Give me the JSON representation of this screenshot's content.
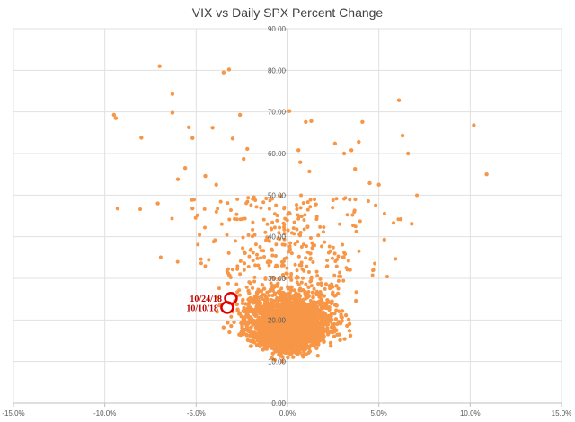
{
  "chart_data": {
    "type": "scatter",
    "title": "VIX vs Daily SPX Percent Change",
    "xlabel": "",
    "ylabel": "",
    "xlim": [
      -15,
      15
    ],
    "ylim": [
      0,
      90
    ],
    "grid": true,
    "legend": "none",
    "series_color": "#f79646",
    "x_tick_labels": [
      "-15.0%",
      "-10.0%",
      "-5.0%",
      "0.0%",
      "5.0%",
      "10.0%",
      "15.0%"
    ],
    "x_tick_values": [
      -15,
      -10,
      -5,
      0,
      5,
      10,
      15
    ],
    "y_tick_labels": [
      "0.00",
      "10.00",
      "20.00",
      "30.00",
      "40.00",
      "50.00",
      "60.00",
      "70.00",
      "80.00",
      "90.00"
    ],
    "y_tick_values": [
      0,
      10,
      20,
      30,
      40,
      50,
      60,
      70,
      80,
      90
    ],
    "annotations": [
      {
        "label": "10/24/18",
        "x": -3.1,
        "y": 25.2,
        "color": "#e00000"
      },
      {
        "label": "10/10/18",
        "x": -3.3,
        "y": 23.0,
        "color": "#e00000"
      }
    ],
    "outliers": [
      {
        "x": -7.0,
        "y": 81.0
      },
      {
        "x": -3.5,
        "y": 79.5
      },
      {
        "x": -3.2,
        "y": 80.2
      },
      {
        "x": -6.3,
        "y": 74.3
      },
      {
        "x": 6.1,
        "y": 72.8
      },
      {
        "x": -9.5,
        "y": 69.3
      },
      {
        "x": -9.4,
        "y": 68.5
      },
      {
        "x": -6.3,
        "y": 69.8
      },
      {
        "x": -2.6,
        "y": 69.3
      },
      {
        "x": 0.1,
        "y": 70.2
      },
      {
        "x": 10.2,
        "y": 66.8
      },
      {
        "x": 1.0,
        "y": 67.6
      },
      {
        "x": 1.3,
        "y": 67.8
      },
      {
        "x": 4.1,
        "y": 67.6
      },
      {
        "x": -5.4,
        "y": 66.3
      },
      {
        "x": -4.1,
        "y": 66.2
      },
      {
        "x": -5.2,
        "y": 63.7
      },
      {
        "x": -3.0,
        "y": 63.6
      },
      {
        "x": -8.0,
        "y": 63.8
      },
      {
        "x": 6.3,
        "y": 64.3
      },
      {
        "x": 2.6,
        "y": 62.4
      },
      {
        "x": 3.9,
        "y": 62.8
      },
      {
        "x": -2.2,
        "y": 61.1
      },
      {
        "x": 0.6,
        "y": 60.8
      },
      {
        "x": 3.1,
        "y": 60.0
      },
      {
        "x": 3.5,
        "y": 60.8
      },
      {
        "x": 6.6,
        "y": 60.0
      },
      {
        "x": 10.9,
        "y": 55.0
      },
      {
        "x": -5.6,
        "y": 56.5
      },
      {
        "x": -2.4,
        "y": 58.7
      },
      {
        "x": 0.7,
        "y": 57.9
      },
      {
        "x": 1.2,
        "y": 55.7
      },
      {
        "x": 3.7,
        "y": 56.3
      },
      {
        "x": -6.0,
        "y": 53.8
      },
      {
        "x": -4.5,
        "y": 54.6
      },
      {
        "x": 4.5,
        "y": 52.9
      },
      {
        "x": 5.0,
        "y": 52.5
      },
      {
        "x": -3.9,
        "y": 52.5
      },
      {
        "x": -7.1,
        "y": 48.0
      },
      {
        "x": -9.3,
        "y": 46.8
      },
      {
        "x": -5.2,
        "y": 46.8
      },
      {
        "x": 6.2,
        "y": 44.2
      },
      {
        "x": 6.8,
        "y": 43.1
      },
      {
        "x": 5.3,
        "y": 39.3
      },
      {
        "x": -3.5,
        "y": 18.2
      }
    ],
    "cluster_center": {
      "x": 0.05,
      "y": 17.5
    },
    "cluster_note": "dense cloud of several thousand daily points, mostly between -3% and +3% and VIX 9-30"
  }
}
